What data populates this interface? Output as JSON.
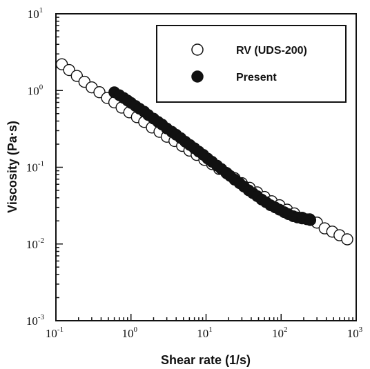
{
  "chart_data": {
    "type": "scatter",
    "xlabel": "Shear rate (1/s)",
    "ylabel": "Viscosity (Pa·s)",
    "xscale": "log",
    "yscale": "log",
    "xlim": [
      0.1,
      1000
    ],
    "ylim": [
      0.001,
      10
    ],
    "x_ticks": [
      {
        "base": "10",
        "exp": "-1",
        "value": 0.1
      },
      {
        "base": "10",
        "exp": "0",
        "value": 1
      },
      {
        "base": "10",
        "exp": "1",
        "value": 10
      },
      {
        "base": "10",
        "exp": "2",
        "value": 100
      },
      {
        "base": "10",
        "exp": "3",
        "value": 1000
      }
    ],
    "y_ticks": [
      {
        "base": "10",
        "exp": "-3",
        "value": 0.001
      },
      {
        "base": "10",
        "exp": "-2",
        "value": 0.01
      },
      {
        "base": "10",
        "exp": "-1",
        "value": 0.1
      },
      {
        "base": "10",
        "exp": "0",
        "value": 1
      },
      {
        "base": "10",
        "exp": "1",
        "value": 10
      }
    ],
    "legend_position": "top-right",
    "series": [
      {
        "name": "RV (UDS-200)",
        "marker": "open-circle",
        "color": "#111111",
        "x": [
          0.12,
          0.15,
          0.19,
          0.24,
          0.3,
          0.38,
          0.48,
          0.6,
          0.75,
          0.95,
          1.2,
          1.5,
          1.9,
          2.4,
          3.0,
          3.8,
          4.8,
          6.0,
          7.5,
          9.5,
          12,
          15,
          19,
          24,
          30,
          38,
          48,
          60,
          75,
          95,
          120,
          150,
          190,
          240,
          300,
          380,
          480,
          600,
          760
        ],
        "y": [
          2.2,
          1.85,
          1.55,
          1.3,
          1.1,
          0.95,
          0.8,
          0.7,
          0.6,
          0.52,
          0.45,
          0.39,
          0.33,
          0.29,
          0.25,
          0.22,
          0.19,
          0.165,
          0.145,
          0.125,
          0.11,
          0.095,
          0.083,
          0.072,
          0.062,
          0.054,
          0.047,
          0.041,
          0.036,
          0.032,
          0.028,
          0.025,
          0.022,
          0.021,
          0.019,
          0.016,
          0.0145,
          0.013,
          0.0115
        ]
      },
      {
        "name": "Present",
        "marker": "filled-circle",
        "color": "#111111",
        "x": [
          0.6,
          0.7,
          0.8,
          0.9,
          1.0,
          1.15,
          1.3,
          1.5,
          1.7,
          2.0,
          2.3,
          2.6,
          3.0,
          3.5,
          4.0,
          4.6,
          5.3,
          6.1,
          7.0,
          8.0,
          9.2,
          10.5,
          12,
          14,
          16,
          18.5,
          21,
          24,
          28,
          32,
          37,
          42,
          48,
          55,
          63,
          72,
          83,
          95,
          110,
          125,
          145,
          165,
          190,
          220,
          245
        ],
        "y": [
          0.95,
          0.87,
          0.8,
          0.74,
          0.69,
          0.63,
          0.58,
          0.53,
          0.48,
          0.43,
          0.39,
          0.36,
          0.32,
          0.29,
          0.265,
          0.24,
          0.215,
          0.195,
          0.177,
          0.16,
          0.145,
          0.13,
          0.118,
          0.105,
          0.095,
          0.085,
          0.077,
          0.069,
          0.062,
          0.056,
          0.05,
          0.046,
          0.042,
          0.038,
          0.035,
          0.032,
          0.03,
          0.028,
          0.026,
          0.0245,
          0.023,
          0.0222,
          0.0215,
          0.021,
          0.0205
        ]
      }
    ]
  }
}
